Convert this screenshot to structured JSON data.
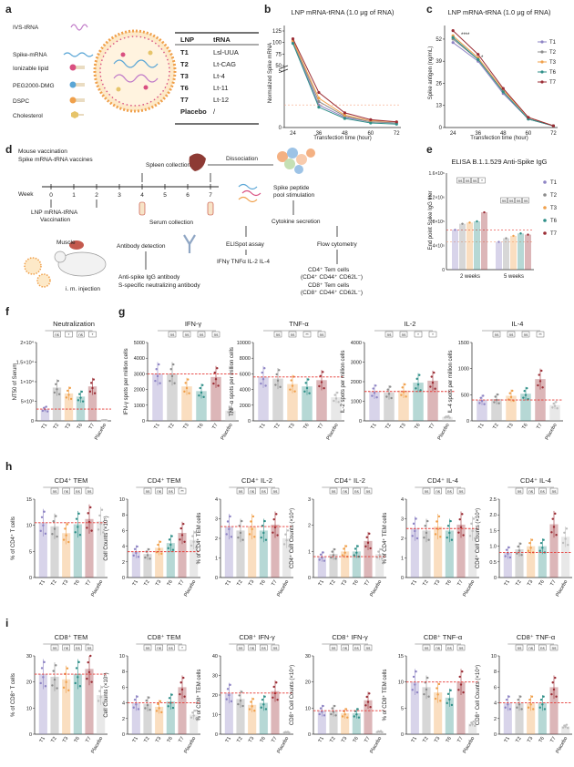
{
  "colors": {
    "T1": "#8e84c4",
    "T2": "#8c8c8c",
    "T3": "#f0a04b",
    "T6": "#2f8f88",
    "T7": "#9b2d35",
    "Placebo": "#bdbdbd",
    "ref_line": "#e53935",
    "dash_orange": "#f4a582"
  },
  "groups": [
    "T1",
    "T2",
    "T3",
    "T6",
    "T7",
    "Placebo"
  ],
  "panel_a": {
    "label": "a",
    "components": [
      "IVS-tRNA",
      "Spike-mRNA",
      "Ionizable lipid",
      "PEG2000-DMG",
      "DSPC",
      "Cholesterol"
    ],
    "table_headers": [
      "LNP",
      "tRNA"
    ],
    "table_rows": [
      {
        "lnp": "T1",
        "trna": "Lsl-UUA"
      },
      {
        "lnp": "T2",
        "trna": "Lt-CAG"
      },
      {
        "lnp": "T3",
        "trna": "Lt-4"
      },
      {
        "lnp": "T6",
        "trna": "Lt-11"
      },
      {
        "lnp": "T7",
        "trna": "Lt-12"
      },
      {
        "lnp": "Placebo",
        "trna": "/"
      }
    ]
  },
  "panel_b": {
    "label": "b"
  },
  "panel_c": {
    "label": "c"
  },
  "panel_d": {
    "label": "d",
    "title_lines": [
      "Mouse vaccination",
      "Spike mRNA-tRNA vaccines"
    ],
    "week_label": "Week",
    "weeks": [
      "0",
      "1",
      "2",
      "3",
      "4",
      "5",
      "6",
      "7"
    ],
    "spleen_collection": "Spleen collection",
    "dissociation": "Dissociation",
    "lnp_vaccination": [
      "LNP mRNA-tRNA",
      "Vaccination"
    ],
    "serum_collection": "Serum collection",
    "antibody_detection": "Antibody detection",
    "peptide_stim": [
      "Spike peptide",
      "pool stimulation"
    ],
    "cytokine_secretion": "Cytokine secretion",
    "elispot": "ELISpot assay",
    "flow": "Flow cytometry",
    "antibodies": [
      "Anti-spike IgG antibody",
      "S-specific neutralizing antibody"
    ],
    "cytokines": "IFNγ  TNFα  IL-2  IL-4",
    "tem_lines": [
      "CD4⁺ Tem cells",
      "(CD4⁺ CD44⁺ CD62L⁻)",
      "CD8⁺ Tem cells",
      "(CD8⁺ CD44⁺ CD62L⁻)"
    ],
    "injection": "i. m. injection",
    "muscle": "Muscle"
  },
  "panel_e": {
    "label": "e"
  },
  "row_labels": {
    "f": "f",
    "g": "g",
    "h": "h",
    "i": "i"
  },
  "chart_data": [
    {
      "id": "b",
      "type": "line",
      "title": "LNP mRNA-tRNA (1.0 μg of RNA)",
      "xlabel": "Transfection time (hour)",
      "ylabel": "Normalized Spike mRNA",
      "x": [
        24,
        36,
        48,
        60,
        72
      ],
      "xticks": [
        "24",
        "36",
        "48",
        "60",
        "72"
      ],
      "yticks": [
        "0",
        "5",
        "50",
        "75",
        "100",
        "125"
      ],
      "broken_axis": true,
      "ylim_upper": [
        50,
        125
      ],
      "ylim_lower": [
        0,
        5
      ],
      "reference_line": 2,
      "series": [
        {
          "name": "T1",
          "values": [
            100,
            2.0,
            0.9,
            0.5,
            0.4
          ]
        },
        {
          "name": "T2",
          "values": [
            102,
            2.3,
            1.0,
            0.5,
            0.4
          ]
        },
        {
          "name": "T3",
          "values": [
            104,
            2.6,
            1.1,
            0.6,
            0.5
          ]
        },
        {
          "name": "T6",
          "values": [
            98,
            1.8,
            0.8,
            0.4,
            0.3
          ]
        },
        {
          "name": "T7",
          "values": [
            108,
            3.1,
            1.3,
            0.7,
            0.5
          ]
        }
      ]
    },
    {
      "id": "c",
      "type": "line",
      "title": "LNP mRNA-tRNA (1.0 μg of RNA)",
      "xlabel": "Transfection time (hour)",
      "ylabel": "Spike antigen (ng/mL)",
      "x": [
        24,
        36,
        48,
        60,
        72
      ],
      "xticks": [
        "24",
        "36",
        "48",
        "60",
        "72"
      ],
      "yticks": [
        "0",
        "13",
        "26",
        "39",
        "52"
      ],
      "ylim": [
        0,
        60
      ],
      "annotations": [
        "****",
        "*"
      ],
      "legend": [
        "T1",
        "T2",
        "T3",
        "T6",
        "T7"
      ],
      "series": [
        {
          "name": "T1",
          "values": [
            50,
            39,
            20,
            5,
            1
          ]
        },
        {
          "name": "T2",
          "values": [
            52,
            40,
            21,
            5,
            1
          ]
        },
        {
          "name": "T3",
          "values": [
            54,
            41,
            22,
            6,
            1
          ]
        },
        {
          "name": "T6",
          "values": [
            53,
            40,
            21,
            5,
            1
          ]
        },
        {
          "name": "T7",
          "values": [
            57,
            43,
            23,
            6,
            1
          ]
        }
      ]
    },
    {
      "id": "e",
      "type": "bar",
      "title": "ELISA B.1.1.529 Anti-Spike IgG",
      "ylabel": "End point Spike IgG titer",
      "categories": [
        "2 weeks",
        "5 weeks"
      ],
      "yticks": [
        "0",
        "4×10⁵",
        "8×10⁵",
        "1.2×10⁶",
        "1.6×10⁶"
      ],
      "ylim": [
        0,
        1600000
      ],
      "ref_lines": [
        660000,
        460000
      ],
      "legend": [
        "T1",
        "T2",
        "T3",
        "T6",
        "T7"
      ],
      "sig_2w": [
        "ns",
        "ns",
        "ns",
        "*"
      ],
      "sig_5w": [
        "ns",
        "ns",
        "ns",
        "ns"
      ],
      "series": [
        {
          "name": "T1",
          "values": [
            660000,
            460000
          ]
        },
        {
          "name": "T2",
          "values": [
            760000,
            520000
          ]
        },
        {
          "name": "T3",
          "values": [
            780000,
            560000
          ]
        },
        {
          "name": "T6",
          "values": [
            800000,
            600000
          ]
        },
        {
          "name": "T7",
          "values": [
            950000,
            580000
          ]
        }
      ]
    },
    {
      "id": "f",
      "type": "bar",
      "title": "Neutralization",
      "ylabel": "NT50 of Serum",
      "categories": [
        "T1",
        "T2",
        "T3",
        "T6",
        "T7",
        "Placebo"
      ],
      "values": [
        3000,
        8500,
        7000,
        6200,
        8800,
        150
      ],
      "yticks": [
        "0",
        "5×10³",
        "1×10⁴",
        "1.5×10⁴",
        "2×10⁴"
      ],
      "ylim": [
        0,
        20000
      ],
      "reference": 3000,
      "sig": [
        "ns",
        "*",
        "ns",
        "*"
      ]
    },
    {
      "id": "g1",
      "type": "bar",
      "title": "IFN-γ",
      "ylabel": "IFN-γ spots per million cells",
      "categories": [
        "T1",
        "T2",
        "T3",
        "T6",
        "T7",
        "Placebo"
      ],
      "values": [
        3000,
        3000,
        2200,
        1900,
        2800,
        650
      ],
      "yticks": [
        "0",
        "1000",
        "2000",
        "3000",
        "4000",
        "5000"
      ],
      "ylim": [
        0,
        5000
      ],
      "reference": 3000,
      "sig": [
        "ns",
        "ns",
        "ns",
        "ns"
      ]
    },
    {
      "id": "g2",
      "type": "bar",
      "title": "TNF-α",
      "ylabel": "TNF-α spots per million cells",
      "categories": [
        "T1",
        "T2",
        "T3",
        "T6",
        "T7",
        "Placebo"
      ],
      "values": [
        5600,
        5400,
        4700,
        4400,
        5200,
        3000
      ],
      "yticks": [
        "0",
        "2000",
        "4000",
        "6000",
        "8000",
        "10000"
      ],
      "ylim": [
        0,
        10000
      ],
      "reference": 5600,
      "sig": [
        "ns",
        "ns",
        "**",
        "ns"
      ]
    },
    {
      "id": "g3",
      "type": "bar",
      "title": "IL-2",
      "ylabel": "IL-2 spots per million cells",
      "categories": [
        "T1",
        "T2",
        "T3",
        "T6",
        "T7",
        "Placebo"
      ],
      "values": [
        1500,
        1450,
        1550,
        1950,
        2050,
        200
      ],
      "yticks": [
        "0",
        "1000",
        "2000",
        "3000",
        "4000"
      ],
      "ylim": [
        0,
        4000
      ],
      "reference": 1500,
      "sig": [
        "ns",
        "ns",
        "*",
        "*"
      ]
    },
    {
      "id": "g4",
      "type": "bar",
      "title": "IL-4",
      "ylabel": "IL-4 spots per million cells",
      "categories": [
        "T1",
        "T2",
        "T3",
        "T6",
        "T7",
        "Placebo"
      ],
      "values": [
        400,
        420,
        480,
        520,
        800,
        300
      ],
      "yticks": [
        "0",
        "500",
        "1000",
        "1500"
      ],
      "ylim": [
        0,
        1500
      ],
      "reference": 400,
      "sig": [
        "ns",
        "ns",
        "ns",
        "**"
      ]
    },
    {
      "id": "h1",
      "type": "bar",
      "title": "CD4⁺ TEM",
      "ylabel": "% of CD4⁺ T cells",
      "categories": [
        "T1",
        "T2",
        "T3",
        "T6",
        "T7",
        "Placebo"
      ],
      "values": [
        10.5,
        9.8,
        8.5,
        10.2,
        11.2,
        10.8
      ],
      "yticks": [
        "0",
        "5",
        "10",
        "15"
      ],
      "ylim": [
        0,
        15
      ],
      "reference": 10.5,
      "sig": [
        "ns",
        "ns",
        "ns",
        "ns"
      ]
    },
    {
      "id": "h2",
      "type": "bar",
      "title": "CD4⁺ TEM",
      "ylabel": "Cell Counts (×10⁵)",
      "categories": [
        "T1",
        "T2",
        "T3",
        "T6",
        "T7",
        "Placebo"
      ],
      "values": [
        3.3,
        3.0,
        3.8,
        4.4,
        5.7,
        4.8
      ],
      "yticks": [
        "0",
        "2",
        "4",
        "6",
        "8",
        "10"
      ],
      "ylim": [
        0,
        10
      ],
      "reference": 3.3,
      "sig": [
        "ns",
        "ns",
        "ns",
        "**"
      ]
    },
    {
      "id": "h3",
      "type": "bar",
      "title": "CD4⁺ IL-2",
      "ylabel": "% of CD4⁺ TEM cells",
      "categories": [
        "T1",
        "T2",
        "T3",
        "T6",
        "T7",
        "Placebo"
      ],
      "values": [
        2.6,
        2.4,
        2.6,
        2.4,
        2.7,
        2.0
      ],
      "yticks": [
        "0",
        "1",
        "2",
        "3",
        "4"
      ],
      "ylim": [
        0,
        4
      ],
      "reference": 2.6,
      "sig": [
        "ns",
        "ns",
        "ns",
        "ns"
      ]
    },
    {
      "id": "h4",
      "type": "bar",
      "title": "CD4⁺ IL-2",
      "ylabel": "CD4⁺ Cell Counts (×10⁴)",
      "categories": [
        "T1",
        "T2",
        "T3",
        "T6",
        "T7",
        "Placebo"
      ],
      "values": [
        0.8,
        0.9,
        1.0,
        1.0,
        1.4,
        0.9
      ],
      "yticks": [
        "0",
        "1",
        "2",
        "3"
      ],
      "ylim": [
        0,
        3
      ],
      "reference": 0.8,
      "sig": [
        "ns",
        "ns",
        "ns",
        "ns"
      ]
    },
    {
      "id": "h5",
      "type": "bar",
      "title": "CD4⁺ IL-4",
      "ylabel": "% of CD4⁺ TEM cells",
      "categories": [
        "T1",
        "T2",
        "T3",
        "T6",
        "T7",
        "Placebo"
      ],
      "values": [
        2.5,
        2.4,
        2.6,
        2.4,
        2.7,
        2.5
      ],
      "yticks": [
        "0",
        "1",
        "2",
        "3",
        "4"
      ],
      "ylim": [
        0,
        4
      ],
      "reference": 2.5,
      "sig": [
        "ns",
        "ns",
        "ns",
        "ns"
      ]
    },
    {
      "id": "h6",
      "type": "bar",
      "title": "CD4⁺ IL-4",
      "ylabel": "CD4⁺ Cell Counts (×10⁴)",
      "categories": [
        "T1",
        "T2",
        "T3",
        "T6",
        "T7",
        "Placebo"
      ],
      "values": [
        0.8,
        0.9,
        1.0,
        1.0,
        1.7,
        1.3
      ],
      "yticks": [
        "0",
        "0.5",
        "1.0",
        "1.5",
        "2.0",
        "2.5"
      ],
      "ylim": [
        0,
        2.5
      ],
      "reference": 0.8,
      "sig": [
        "ns",
        "ns",
        "ns",
        "ns"
      ]
    },
    {
      "id": "i1",
      "type": "bar",
      "title": "CD8⁺ TEM",
      "ylabel": "% of CD8⁺ T cells",
      "categories": [
        "T1",
        "T2",
        "T3",
        "T6",
        "T7",
        "Placebo"
      ],
      "values": [
        23,
        22,
        21,
        23,
        25,
        15
      ],
      "yticks": [
        "0",
        "10",
        "20",
        "30"
      ],
      "ylim": [
        0,
        30
      ],
      "reference": 23,
      "sig": [
        "ns",
        "ns",
        "ns",
        "ns"
      ]
    },
    {
      "id": "i2",
      "type": "bar",
      "title": "CD8⁺ TEM",
      "ylabel": "Cell Counts (×10⁵)",
      "categories": [
        "T1",
        "T2",
        "T3",
        "T6",
        "T7",
        "Placebo"
      ],
      "values": [
        4.0,
        3.9,
        3.5,
        4.2,
        6.0,
        2.5
      ],
      "yticks": [
        "0",
        "2",
        "4",
        "6",
        "8",
        "10"
      ],
      "ylim": [
        0,
        10
      ],
      "reference": 4.0,
      "sig": [
        "ns",
        "ns",
        "ns",
        "*"
      ]
    },
    {
      "id": "i3",
      "type": "bar",
      "title": "CD8⁺ IFN-γ",
      "ylabel": "% of CD8⁺ TEM cells",
      "categories": [
        "T1",
        "T2",
        "T3",
        "T6",
        "T7",
        "Placebo"
      ],
      "values": [
        21,
        18,
        15,
        16,
        22,
        1
      ],
      "yticks": [
        "0",
        "10",
        "20",
        "30",
        "40"
      ],
      "ylim": [
        0,
        40
      ],
      "reference": 21,
      "sig": [
        "ns",
        "ns",
        "ns",
        "ns"
      ]
    },
    {
      "id": "i4",
      "type": "bar",
      "title": "CD8⁺ IFN-γ",
      "ylabel": "CD8⁺ Cell Counts (×10⁴)",
      "categories": [
        "T1",
        "T2",
        "T3",
        "T6",
        "T7",
        "Placebo"
      ],
      "values": [
        9,
        9,
        8,
        8,
        13,
        1
      ],
      "yticks": [
        "0",
        "10",
        "20",
        "30"
      ],
      "ylim": [
        0,
        30
      ],
      "reference": 9,
      "sig": [
        "ns",
        "ns",
        "ns",
        "ns"
      ]
    },
    {
      "id": "i5",
      "type": "bar",
      "title": "CD8⁺ TNF-α",
      "ylabel": "% of CD8⁺ TEM cells",
      "categories": [
        "T1",
        "T2",
        "T3",
        "T6",
        "T7",
        "Placebo"
      ],
      "values": [
        10,
        9,
        8,
        7,
        10,
        2
      ],
      "yticks": [
        "0",
        "5",
        "10",
        "15"
      ],
      "ylim": [
        0,
        15
      ],
      "reference": 10,
      "sig": [
        "ns",
        "ns",
        "ns",
        "ns"
      ]
    },
    {
      "id": "i6",
      "type": "bar",
      "title": "CD8⁺ TNF-α",
      "ylabel": "CD8⁺ Cell Counts (×10⁴)",
      "categories": [
        "T1",
        "T2",
        "T3",
        "T6",
        "T7",
        "Placebo"
      ],
      "values": [
        4,
        4,
        4,
        4,
        6,
        1
      ],
      "yticks": [
        "0",
        "2",
        "4",
        "6",
        "8",
        "10"
      ],
      "ylim": [
        0,
        10
      ],
      "reference": 4,
      "sig": [
        "ns",
        "ns",
        "ns",
        "ns"
      ]
    }
  ]
}
